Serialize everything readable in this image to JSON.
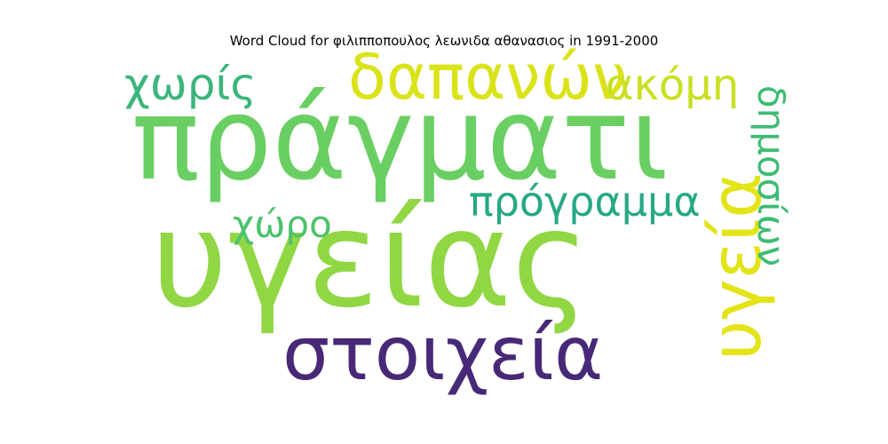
{
  "title": "Word Cloud for φιλιπποπουλος λεωνιδα αθανασιος in 1991-2000",
  "words": [
    {
      "text": "πράγματι",
      "color": "#6acf62",
      "orientation": "horizontal"
    },
    {
      "text": "υγείας",
      "color": "#90d743",
      "orientation": "horizontal"
    },
    {
      "text": "στοιχεία",
      "color": "#472977",
      "orientation": "horizontal"
    },
    {
      "text": "δαπανών",
      "color": "#dae319",
      "orientation": "horizontal"
    },
    {
      "text": "υγεία",
      "color": "#e3e418",
      "orientation": "vertical"
    },
    {
      "text": "πρόγραμμα",
      "color": "#27a884",
      "orientation": "horizontal"
    },
    {
      "text": "ακόμη",
      "color": "#c8e020",
      "orientation": "horizontal"
    },
    {
      "text": "χωρίς",
      "color": "#3bb57c",
      "orientation": "horizontal"
    },
    {
      "text": "χώρο",
      "color": "#4cc26c",
      "orientation": "horizontal"
    },
    {
      "text": "δημοσίων",
      "color": "#3ebc74",
      "orientation": "vertical"
    }
  ]
}
